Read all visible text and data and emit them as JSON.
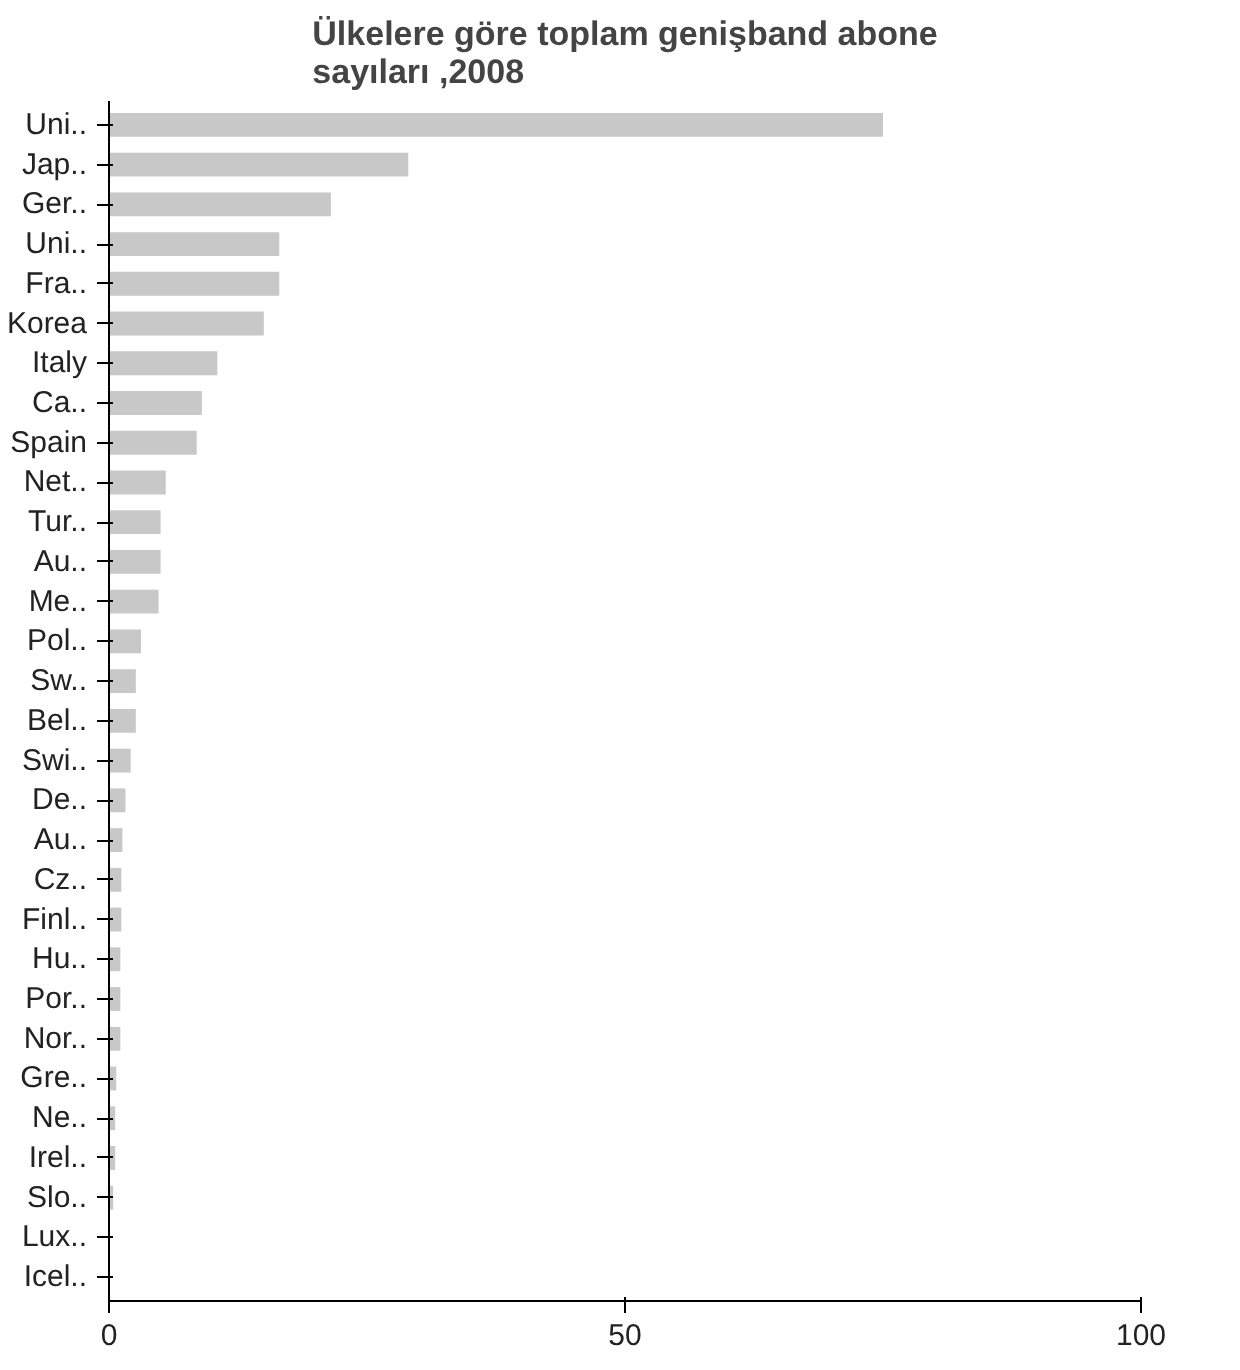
{
  "chart_data": {
    "type": "bar",
    "orientation": "horizontal",
    "title": "Ülkelere göre toplam genişband abone sayıları ,2008",
    "categories": [
      "Uni..",
      "Jap..",
      "Ger..",
      "Uni..",
      "Fra..",
      "Korea",
      "Italy",
      "Ca..",
      "Spain",
      "Net..",
      "Tur..",
      "Au..",
      "Me..",
      "Pol..",
      "Sw..",
      "Bel..",
      "Swi..",
      "De..",
      "Au..",
      "Cz..",
      "Finl..",
      "Hu..",
      "Por..",
      "Nor..",
      "Gre..",
      "Ne..",
      "Irel..",
      "Slo..",
      "Lux..",
      "Icel.."
    ],
    "values": [
      75,
      29,
      21.5,
      16.5,
      16.5,
      15,
      10.5,
      9,
      8.5,
      5.5,
      5,
      5,
      4.8,
      3.1,
      2.6,
      2.6,
      2.1,
      1.6,
      1.3,
      1.2,
      1.2,
      1.1,
      1.1,
      1.1,
      0.7,
      0.6,
      0.6,
      0.4,
      null,
      null
    ],
    "color": "#c8c8c8",
    "xlim": [
      0,
      100
    ],
    "xticks": [
      0,
      50,
      100
    ],
    "grid": false
  }
}
